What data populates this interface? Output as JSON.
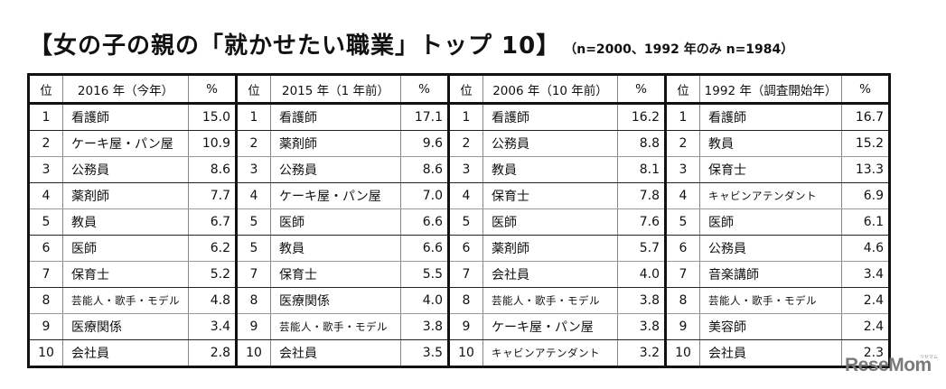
{
  "title": {
    "main": "【女の子の親の「就かせたい職業」トップ 10】",
    "sub": "（n=2000、1992 年のみ n=1984）"
  },
  "headers": {
    "rank": "位",
    "pct": "%",
    "years": [
      "2016 年（今年）",
      "2015 年（1 年前）",
      "2006 年（10 年前）",
      "1992 年（調査開始年）"
    ]
  },
  "rows": [
    {
      "y2016": {
        "rank": "1",
        "job": "看護師",
        "pct": "15.0"
      },
      "y2015": {
        "rank": "1",
        "job": "看護師",
        "pct": "17.1"
      },
      "y2006": {
        "rank": "1",
        "job": "看護師",
        "pct": "16.2"
      },
      "y1992": {
        "rank": "1",
        "job": "看護師",
        "pct": "16.7"
      }
    },
    {
      "y2016": {
        "rank": "2",
        "job": "ケーキ屋・パン屋",
        "pct": "10.9"
      },
      "y2015": {
        "rank": "2",
        "job": "薬剤師",
        "pct": "9.6"
      },
      "y2006": {
        "rank": "2",
        "job": "公務員",
        "pct": "8.8"
      },
      "y1992": {
        "rank": "2",
        "job": "教員",
        "pct": "15.2"
      }
    },
    {
      "y2016": {
        "rank": "3",
        "job": "公務員",
        "pct": "8.6"
      },
      "y2015": {
        "rank": "3",
        "job": "公務員",
        "pct": "8.6"
      },
      "y2006": {
        "rank": "3",
        "job": "教員",
        "pct": "8.1"
      },
      "y1992": {
        "rank": "3",
        "job": "保育士",
        "pct": "13.3"
      }
    },
    {
      "y2016": {
        "rank": "4",
        "job": "薬剤師",
        "pct": "7.7"
      },
      "y2015": {
        "rank": "4",
        "job": "ケーキ屋・パン屋",
        "pct": "7.0"
      },
      "y2006": {
        "rank": "4",
        "job": "保育士",
        "pct": "7.8"
      },
      "y1992": {
        "rank": "4",
        "job": "キャビンアテンダント",
        "pct": "6.9"
      }
    },
    {
      "y2016": {
        "rank": "5",
        "job": "教員",
        "pct": "6.7"
      },
      "y2015": {
        "rank": "5",
        "job": "医師",
        "pct": "6.6"
      },
      "y2006": {
        "rank": "5",
        "job": "医師",
        "pct": "7.6"
      },
      "y1992": {
        "rank": "5",
        "job": "医師",
        "pct": "6.1"
      }
    },
    {
      "y2016": {
        "rank": "6",
        "job": "医師",
        "pct": "6.2"
      },
      "y2015": {
        "rank": "5",
        "job": "教員",
        "pct": "6.6"
      },
      "y2006": {
        "rank": "6",
        "job": "薬剤師",
        "pct": "5.7"
      },
      "y1992": {
        "rank": "6",
        "job": "公務員",
        "pct": "4.6"
      }
    },
    {
      "y2016": {
        "rank": "7",
        "job": "保育士",
        "pct": "5.2"
      },
      "y2015": {
        "rank": "7",
        "job": "保育士",
        "pct": "5.5"
      },
      "y2006": {
        "rank": "7",
        "job": "会社員",
        "pct": "4.0"
      },
      "y1992": {
        "rank": "7",
        "job": "音楽講師",
        "pct": "3.4"
      }
    },
    {
      "y2016": {
        "rank": "8",
        "job": "芸能人・歌手・モデル",
        "pct": "4.8"
      },
      "y2015": {
        "rank": "8",
        "job": "医療関係",
        "pct": "4.0"
      },
      "y2006": {
        "rank": "8",
        "job": "芸能人・歌手・モデル",
        "pct": "3.8"
      },
      "y1992": {
        "rank": "8",
        "job": "芸能人・歌手・モデル",
        "pct": "2.4"
      }
    },
    {
      "y2016": {
        "rank": "9",
        "job": "医療関係",
        "pct": "3.4"
      },
      "y2015": {
        "rank": "9",
        "job": "芸能人・歌手・モデル",
        "pct": "3.8"
      },
      "y2006": {
        "rank": "9",
        "job": "ケーキ屋・パン屋",
        "pct": "3.8"
      },
      "y1992": {
        "rank": "9",
        "job": "美容師",
        "pct": "2.4"
      }
    },
    {
      "y2016": {
        "rank": "10",
        "job": "会社員",
        "pct": "2.8"
      },
      "y2015": {
        "rank": "10",
        "job": "会社員",
        "pct": "3.5"
      },
      "y2006": {
        "rank": "10",
        "job": "キャビンアテンダント",
        "pct": "3.2"
      },
      "y1992": {
        "rank": "10",
        "job": "会社員",
        "pct": "2.3"
      }
    }
  ],
  "watermark": {
    "text": "ReseMom",
    "kana": "リセマム"
  }
}
